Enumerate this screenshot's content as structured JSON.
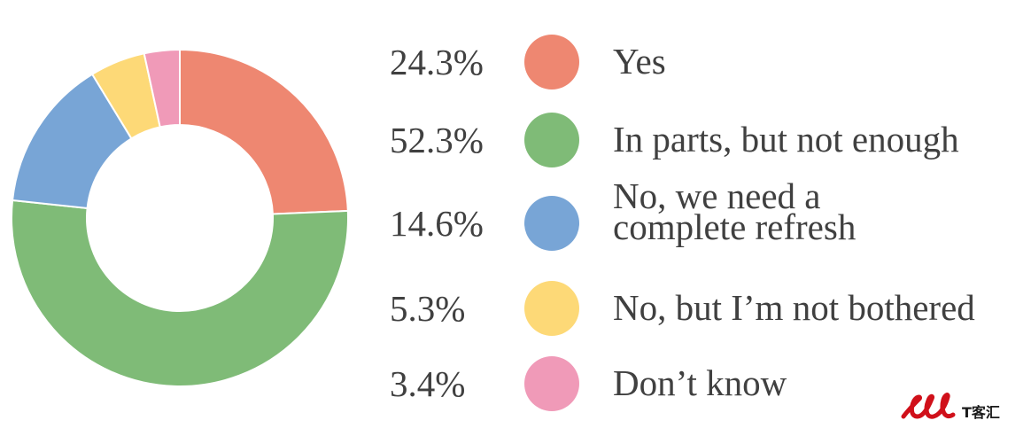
{
  "chart_data": {
    "type": "pie",
    "variant": "donut",
    "title": "",
    "slices": [
      {
        "label": "Yes",
        "value": 24.3,
        "value_label": "24.3%",
        "color": "#ee8771"
      },
      {
        "label": "In parts, but not enough",
        "value": 52.3,
        "value_label": "52.3%",
        "color": "#7fbb77"
      },
      {
        "label": "No, we need a complete refresh",
        "label_lines": [
          "No, we need a",
          "complete refresh"
        ],
        "value": 14.6,
        "value_label": "14.6%",
        "color": "#78a5d6"
      },
      {
        "label": "No, but I’m not bothered",
        "value": 5.3,
        "value_label": "5.3%",
        "color": "#fdd977"
      },
      {
        "label": "Don’t know",
        "value": 3.4,
        "value_label": "3.4%",
        "color": "#f09ab8"
      }
    ],
    "legend_position": "right"
  },
  "watermark": {
    "text": "T客汇",
    "logo_letters": "ell",
    "color": "#d0101a"
  }
}
